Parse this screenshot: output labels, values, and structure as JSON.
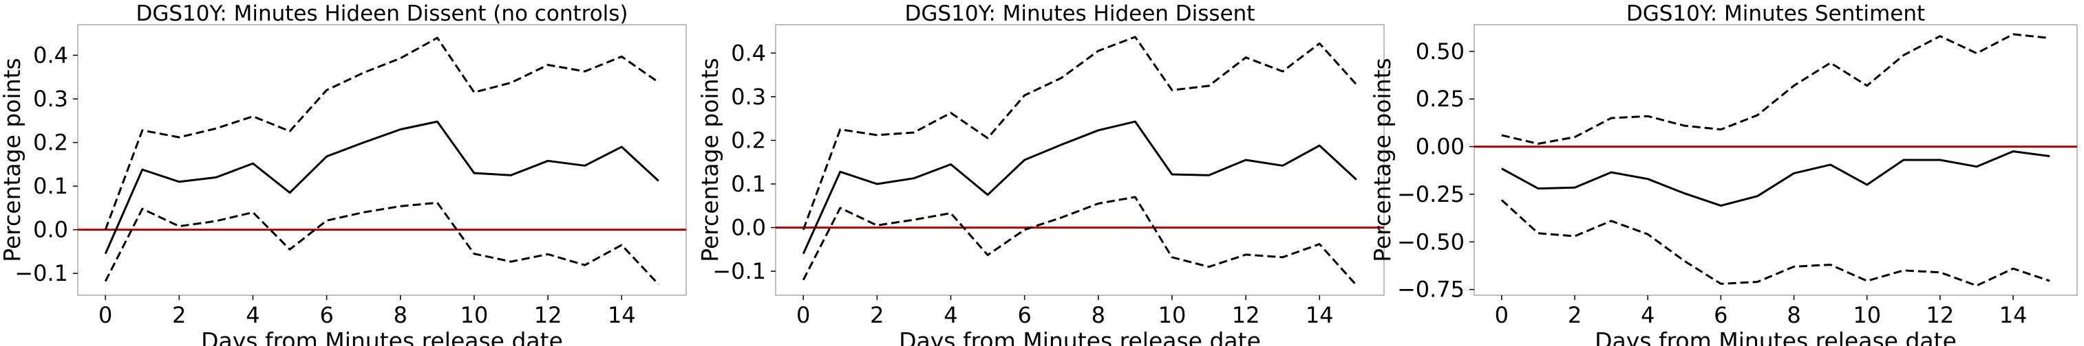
{
  "chart_data": [
    {
      "type": "line",
      "title": "DGS10Y: Minutes Hideen Dissent (no controls)",
      "xlabel": "Days from Minutes release date",
      "ylabel": "Percentage points",
      "xlim": [
        -0.75,
        15.75
      ],
      "ylim": [
        -0.15,
        0.47
      ],
      "xticks": [
        0,
        2,
        4,
        6,
        8,
        10,
        12,
        14
      ],
      "xtick_labels": [
        "0",
        "2",
        "4",
        "6",
        "8",
        "10",
        "12",
        "14"
      ],
      "yticks": [
        -0.1,
        0.0,
        0.1,
        0.2,
        0.3,
        0.4
      ],
      "ytick_labels": [
        "−0.1",
        "0.0",
        "0.1",
        "0.2",
        "0.3",
        "0.4"
      ],
      "hline": 0,
      "grid": false,
      "x": [
        0,
        1,
        2,
        3,
        4,
        5,
        6,
        7,
        8,
        9,
        10,
        11,
        12,
        13,
        14,
        15
      ],
      "series": [
        {
          "role": "estimate",
          "style": "solid",
          "color": "#000000",
          "values": [
            -0.055,
            0.138,
            0.11,
            0.12,
            0.152,
            0.085,
            0.168,
            0.2,
            0.23,
            0.248,
            0.13,
            0.125,
            0.158,
            0.147,
            0.19,
            0.112
          ]
        },
        {
          "role": "upper",
          "style": "dashed",
          "color": "#000000",
          "values": [
            0.0,
            0.228,
            0.212,
            0.232,
            0.26,
            0.226,
            0.32,
            0.36,
            0.393,
            0.44,
            0.315,
            0.337,
            0.378,
            0.363,
            0.397,
            0.338
          ]
        },
        {
          "role": "lower",
          "style": "dashed",
          "color": "#000000",
          "values": [
            -0.118,
            0.048,
            0.008,
            0.02,
            0.04,
            -0.045,
            0.021,
            0.04,
            0.054,
            0.062,
            -0.055,
            -0.073,
            -0.056,
            -0.081,
            -0.035,
            -0.125
          ]
        }
      ]
    },
    {
      "type": "line",
      "title": "DGS10Y: Minutes Hideen Dissent",
      "xlabel": "Days from Minutes release date",
      "ylabel": "Percentage points",
      "xlim": [
        -0.75,
        15.75
      ],
      "ylim": [
        -0.155,
        0.465
      ],
      "xticks": [
        0,
        2,
        4,
        6,
        8,
        10,
        12,
        14
      ],
      "xtick_labels": [
        "0",
        "2",
        "4",
        "6",
        "8",
        "10",
        "12",
        "14"
      ],
      "yticks": [
        -0.1,
        0.0,
        0.1,
        0.2,
        0.3,
        0.4
      ],
      "ytick_labels": [
        "−0.1",
        "0.0",
        "0.1",
        "0.2",
        "0.3",
        "0.4"
      ],
      "hline": 0,
      "grid": false,
      "x": [
        0,
        1,
        2,
        3,
        4,
        5,
        6,
        7,
        8,
        9,
        10,
        11,
        12,
        13,
        14,
        15
      ],
      "series": [
        {
          "role": "estimate",
          "style": "solid",
          "color": "#000000",
          "values": [
            -0.06,
            0.128,
            0.1,
            0.113,
            0.145,
            0.075,
            0.155,
            0.19,
            0.223,
            0.243,
            0.122,
            0.12,
            0.155,
            0.142,
            0.188,
            0.11
          ]
        },
        {
          "role": "upper",
          "style": "dashed",
          "color": "#000000",
          "values": [
            -0.005,
            0.225,
            0.212,
            0.218,
            0.263,
            0.205,
            0.303,
            0.343,
            0.405,
            0.437,
            0.315,
            0.325,
            0.39,
            0.358,
            0.422,
            0.328
          ]
        },
        {
          "role": "lower",
          "style": "dashed",
          "color": "#000000",
          "values": [
            -0.12,
            0.045,
            0.005,
            0.018,
            0.033,
            -0.063,
            -0.005,
            0.023,
            0.055,
            0.07,
            -0.068,
            -0.09,
            -0.062,
            -0.068,
            -0.038,
            -0.132
          ]
        }
      ]
    },
    {
      "type": "line",
      "title": "DGS10Y: Minutes Sentiment",
      "xlabel": "Days from Minutes release date",
      "ylabel": "Percentage points",
      "xlim": [
        -0.75,
        15.75
      ],
      "ylim": [
        -0.78,
        0.64
      ],
      "xticks": [
        0,
        2,
        4,
        6,
        8,
        10,
        12,
        14
      ],
      "xtick_labels": [
        "0",
        "2",
        "4",
        "6",
        "8",
        "10",
        "12",
        "14"
      ],
      "yticks": [
        -0.75,
        -0.5,
        -0.25,
        0.0,
        0.25,
        0.5
      ],
      "ytick_labels": [
        "−0.75",
        "−0.50",
        "−0.25",
        "0.00",
        "0.25",
        "0.50"
      ],
      "hline": 0,
      "grid": false,
      "x": [
        0,
        1,
        2,
        3,
        4,
        5,
        6,
        7,
        8,
        9,
        10,
        11,
        12,
        13,
        14,
        15
      ],
      "series": [
        {
          "role": "estimate",
          "style": "solid",
          "color": "#000000",
          "values": [
            -0.115,
            -0.22,
            -0.215,
            -0.135,
            -0.17,
            -0.245,
            -0.31,
            -0.26,
            -0.14,
            -0.095,
            -0.2,
            -0.07,
            -0.07,
            -0.105,
            -0.025,
            -0.05
          ]
        },
        {
          "role": "upper",
          "style": "dashed",
          "color": "#000000",
          "values": [
            0.06,
            0.015,
            0.05,
            0.15,
            0.16,
            0.11,
            0.09,
            0.165,
            0.32,
            0.44,
            0.32,
            0.48,
            0.58,
            0.49,
            0.59,
            0.57
          ]
        },
        {
          "role": "lower",
          "style": "dashed",
          "color": "#000000",
          "values": [
            -0.28,
            -0.455,
            -0.47,
            -0.39,
            -0.46,
            -0.6,
            -0.72,
            -0.71,
            -0.63,
            -0.62,
            -0.705,
            -0.65,
            -0.66,
            -0.73,
            -0.64,
            -0.705
          ]
        }
      ]
    }
  ],
  "style": {
    "zero_line_color": "#b30000",
    "spine_color": "#aaaaaa",
    "line_color": "#000000"
  }
}
